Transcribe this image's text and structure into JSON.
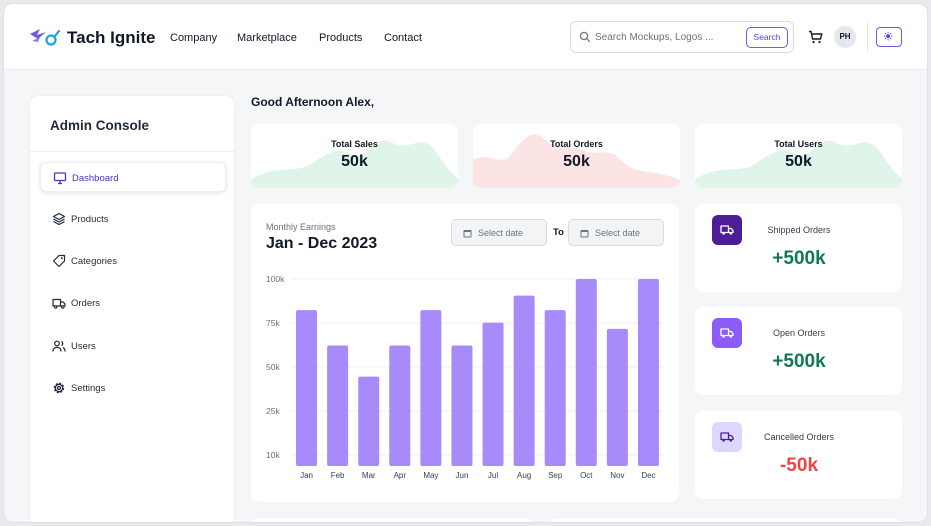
{
  "header": {
    "brand": "Tach Ignite",
    "nav": [
      "Company",
      "Marketplace",
      "Products",
      "Contact"
    ],
    "search_placeholder": "Search Mockups, Logos ...",
    "search_button": "Search",
    "avatar_initials": "PH",
    "accent": "#6d5ce7"
  },
  "sidebar": {
    "title": "Admin Console",
    "items": [
      {
        "label": "Dashboard",
        "icon": "monitor-icon",
        "active": true
      },
      {
        "label": "Products",
        "icon": "layers-icon",
        "active": false
      },
      {
        "label": "Categories",
        "icon": "tag-icon",
        "active": false
      },
      {
        "label": "Orders",
        "icon": "truck-icon",
        "active": false
      },
      {
        "label": "Users",
        "icon": "users-icon",
        "active": false
      },
      {
        "label": "Settings",
        "icon": "gear-icon",
        "active": false
      }
    ]
  },
  "main": {
    "greeting": "Good Afternoon Alex,",
    "stats": [
      {
        "label": "Total Sales",
        "value": "50k",
        "color": "#dff5e9"
      },
      {
        "label": "Total Orders",
        "value": "50k",
        "color": "#fde4e4"
      },
      {
        "label": "Total Users",
        "value": "50k",
        "color": "#dff5e9"
      }
    ],
    "earnings": {
      "subtitle": "Monthly Earnings",
      "title": "Jan - Dec 2023",
      "date_from_placeholder": "Select date",
      "to_label": "To",
      "date_to_placeholder": "Select date"
    },
    "orders": [
      {
        "label": "Shipped Orders",
        "value": "+500k",
        "value_color": "#0f7a4f",
        "icon_bg": "#4c1d95"
      },
      {
        "label": "Open Orders",
        "value": "+500k",
        "value_color": "#0f7a4f",
        "icon_bg": "#8b5cf6"
      },
      {
        "label": "Cancelled Orders",
        "value": "-50k",
        "value_color": "#ef4444",
        "icon_bg": "#ddd6fe"
      }
    ]
  },
  "chart_data": {
    "type": "bar",
    "categories": [
      "Jan",
      "Feb",
      "Mar",
      "Apr",
      "May",
      "Jun",
      "Jul",
      "Aug",
      "Sep",
      "Oct",
      "Nov",
      "Dec"
    ],
    "values": [
      85,
      68,
      53,
      68,
      85,
      68,
      79,
      92,
      85,
      100,
      76,
      100
    ],
    "yticks": [
      "100k",
      "75k",
      "50k",
      "25k",
      "10k"
    ],
    "ylim": [
      10,
      100
    ],
    "bar_color": "#a78bfa",
    "grid": true
  }
}
